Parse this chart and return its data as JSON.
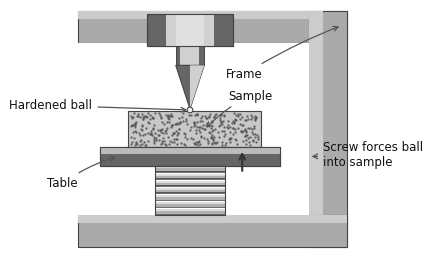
{
  "white": "#ffffff",
  "frame_mid": "#aaaaaa",
  "frame_light": "#cccccc",
  "frame_dark": "#777777",
  "frame_edge": "#444444",
  "metal_light": "#d0d0d0",
  "metal_mid": "#999999",
  "metal_dark": "#666666",
  "sample_fill": "#c8c8c8",
  "table_fill": "#888888",
  "table_light": "#bbbbbb",
  "spring_fill": "#b0b0b0",
  "spring_dark": "#555555",
  "label_frame": "Frame",
  "label_sample": "Sample",
  "label_ball": "Hardened ball",
  "label_table": "Table",
  "label_screw": "Screw forces ball\ninto sample"
}
